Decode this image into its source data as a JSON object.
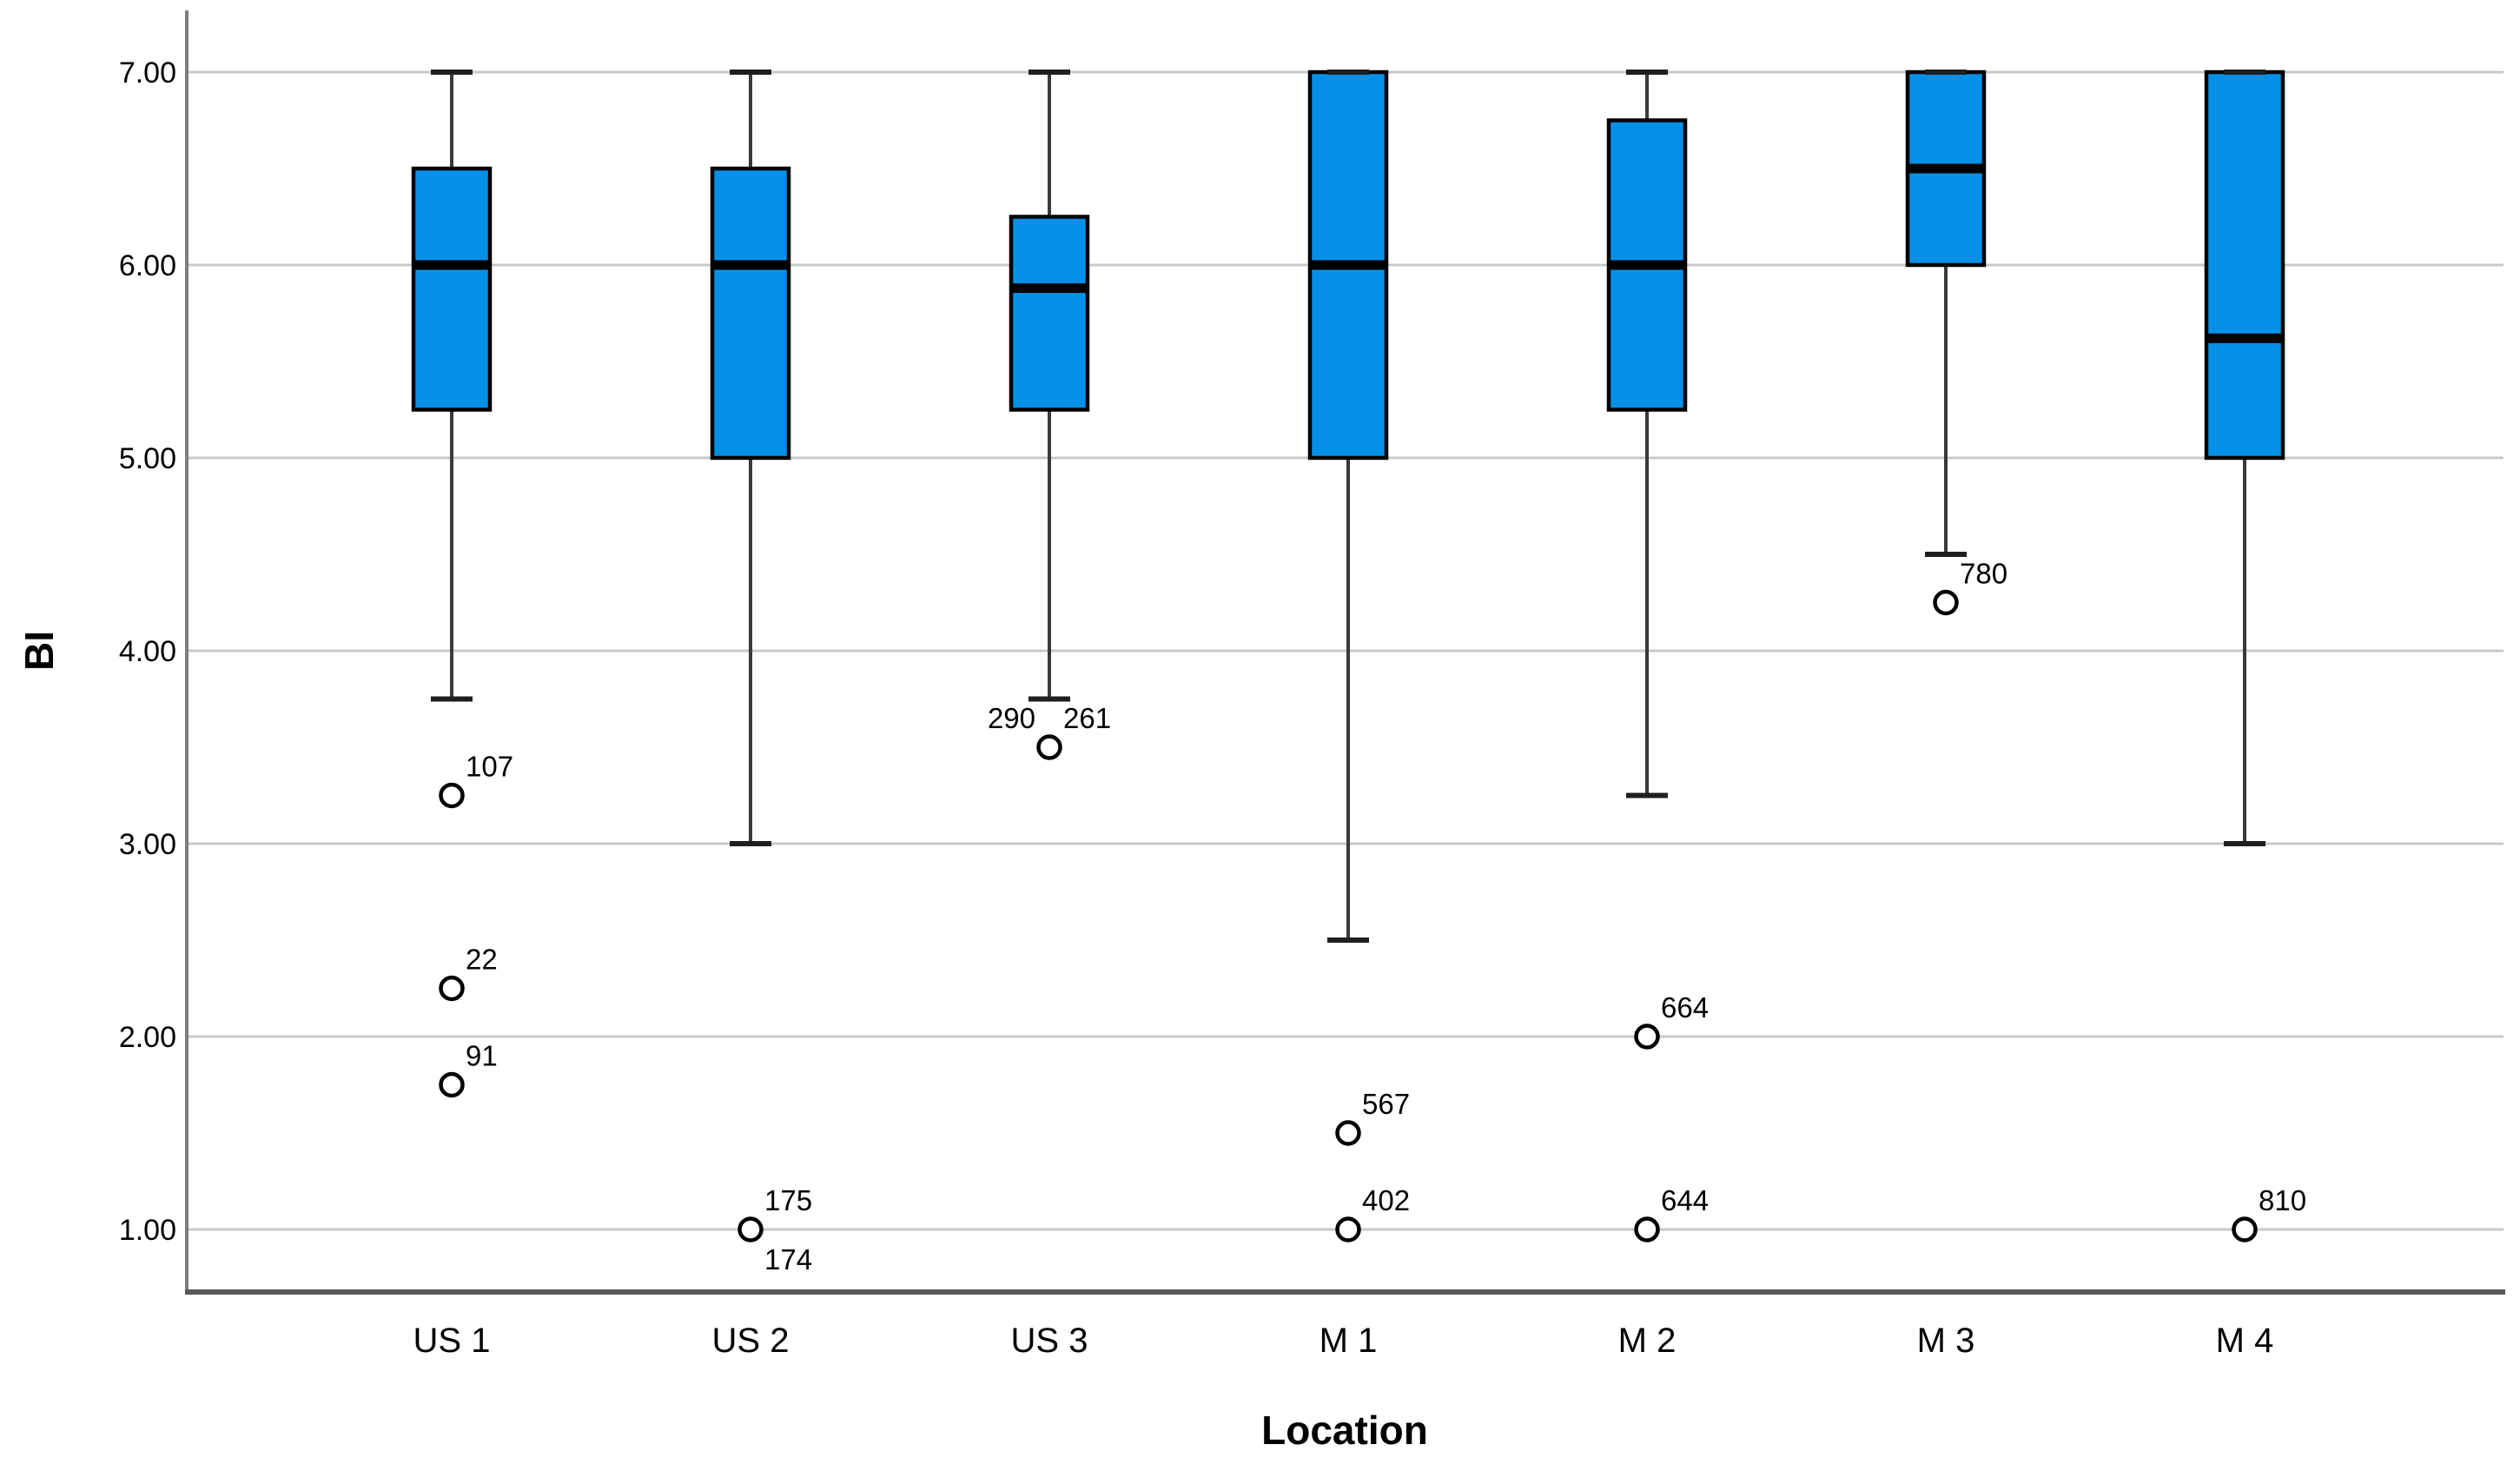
{
  "chart_data": {
    "type": "boxplot",
    "title": "",
    "xlabel": "Location",
    "ylabel": "BI",
    "categories": [
      "US 1",
      "US 2",
      "US 3",
      "M 1",
      "M 2",
      "M 3",
      "M 4"
    ],
    "y_axis": {
      "min": 0.66,
      "max": 7.35,
      "tick_values": [
        1,
        2,
        3,
        4,
        5,
        6,
        7
      ],
      "tick_labels": [
        "1.00",
        "2.00",
        "3.00",
        "4.00",
        "5.00",
        "6.00",
        "7.00"
      ],
      "grid": true,
      "gridlines_horizontal": true
    },
    "legend": "none",
    "series": [
      {
        "category": "US 1",
        "whisker_low": 3.75,
        "q1": 5.25,
        "median": 6.0,
        "q3": 6.5,
        "whisker_high": 7.0,
        "outliers": [
          {
            "value": 3.25,
            "label": "107",
            "label_placement": "above-right",
            "draw_point": true
          },
          {
            "value": 2.25,
            "label": "22",
            "label_placement": "above-right",
            "draw_point": true
          },
          {
            "value": 1.75,
            "label": "91",
            "label_placement": "above-right",
            "draw_point": true
          }
        ]
      },
      {
        "category": "US 2",
        "whisker_low": 3.0,
        "q1": 5.0,
        "median": 6.0,
        "q3": 6.5,
        "whisker_high": 7.0,
        "outliers": [
          {
            "value": 1.0,
            "label": "175",
            "label_placement": "above-right",
            "draw_point": true
          },
          {
            "value": 1.0,
            "label": "174",
            "label_placement": "below-right",
            "draw_point": false
          }
        ]
      },
      {
        "category": "US 3",
        "whisker_low": 3.75,
        "q1": 5.25,
        "median": 5.88,
        "q3": 6.25,
        "whisker_high": 7.0,
        "outliers": [
          {
            "value": 3.5,
            "label": "290",
            "label_placement": "above-left",
            "draw_point": true
          },
          {
            "value": 3.5,
            "label": "261",
            "label_placement": "above-right",
            "draw_point": false
          }
        ]
      },
      {
        "category": "M 1",
        "whisker_low": 2.5,
        "q1": 5.0,
        "median": 6.0,
        "q3": 7.0,
        "whisker_high": 7.0,
        "outliers": [
          {
            "value": 1.5,
            "label": "567",
            "label_placement": "above-right",
            "draw_point": true
          },
          {
            "value": 1.0,
            "label": "402",
            "label_placement": "above-right",
            "draw_point": true
          }
        ]
      },
      {
        "category": "M 2",
        "whisker_low": 3.25,
        "q1": 5.25,
        "median": 6.0,
        "q3": 6.75,
        "whisker_high": 7.0,
        "outliers": [
          {
            "value": 2.0,
            "label": "664",
            "label_placement": "above-right",
            "draw_point": true
          },
          {
            "value": 1.0,
            "label": "644",
            "label_placement": "above-right",
            "draw_point": true
          }
        ]
      },
      {
        "category": "M 3",
        "whisker_low": 4.5,
        "q1": 6.0,
        "median": 6.5,
        "q3": 7.0,
        "whisker_high": 7.0,
        "outliers": [
          {
            "value": 4.25,
            "label": "780",
            "label_placement": "above-right",
            "draw_point": true
          }
        ]
      },
      {
        "category": "M 4",
        "whisker_low": 3.0,
        "q1": 5.0,
        "median": 5.62,
        "q3": 7.0,
        "whisker_high": 7.0,
        "outliers": [
          {
            "value": 1.0,
            "label": "810",
            "label_placement": "above-right",
            "draw_point": true
          }
        ]
      }
    ],
    "colors": {
      "box_fill": "#0590e8",
      "box_border": "#000000",
      "median_line": "#000000",
      "whisker": "#3a3a3a",
      "whisker_cap": "#1f1f1f",
      "outlier_stroke": "#000000",
      "outlier_fill": "#ffffff",
      "gridline": "#c9c9c9",
      "y_axis_line": "#7d7d7d",
      "x_axis_line": "#595959",
      "text": "#000000"
    }
  }
}
